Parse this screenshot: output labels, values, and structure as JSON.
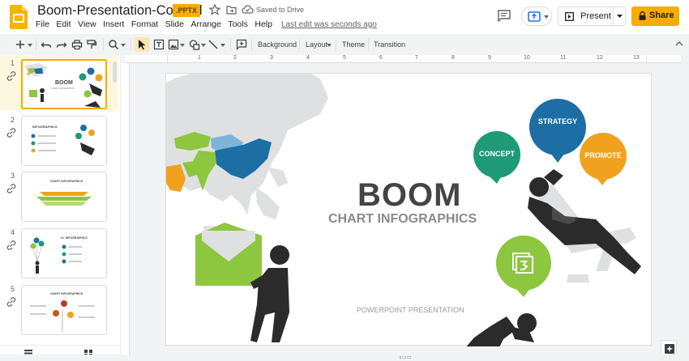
{
  "app": {
    "doc_title": "Boom-Presentation-Colorful",
    "file_badge": ".PPTX",
    "saved_status": "Saved to Drive",
    "last_edit": "Last edit was seconds ago",
    "present_label": "Present",
    "share_label": "Share",
    "accent_color": "#f9ab00"
  },
  "menu": [
    "File",
    "Edit",
    "View",
    "Insert",
    "Format",
    "Slide",
    "Arrange",
    "Tools",
    "Help"
  ],
  "toolbar": {
    "background_label": "Background",
    "layout_label": "Layout",
    "theme_label": "Theme",
    "transition_label": "Transition"
  },
  "ruler": {
    "marks": [
      "1",
      "2",
      "3",
      "4",
      "5",
      "6",
      "7",
      "8",
      "9",
      "10",
      "11",
      "12",
      "13"
    ]
  },
  "thumbnails": [
    {
      "number": "1",
      "title": "BOOM",
      "subtitle": "CHART INFOGRAPHICS"
    },
    {
      "number": "2",
      "title": "INFOGRAPHICS"
    },
    {
      "number": "3",
      "title": "CHART INFOGRAPHICS"
    },
    {
      "number": "4",
      "title": "01. INFOGRAPHICS"
    },
    {
      "number": "5",
      "title": "CHART INFOGRAPHICS"
    }
  ],
  "slide": {
    "title": "BOOM",
    "subtitle": "CHART INFOGRAPHICS",
    "footer": "POWERPOINT PRESENTATION",
    "bubbles": {
      "strategy": "STRATEGY",
      "concept": "CONCEPT",
      "promote": "PROMOTE"
    },
    "colors": {
      "strategy": "#1c6ea4",
      "concept": "#1e9a77",
      "promote": "#f0a21f",
      "green": "#8dc63f",
      "dark": "#2b2b2b",
      "grey_map": "#dfe0e2"
    }
  }
}
